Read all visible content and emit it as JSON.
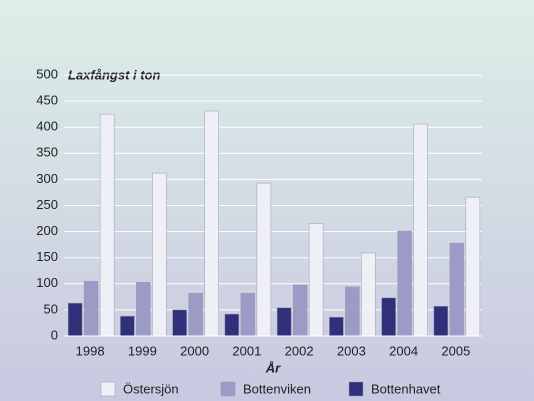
{
  "chart_data": {
    "type": "bar",
    "title": "Laxfångst i ton",
    "x_label": "År",
    "categories": [
      "1998",
      "1999",
      "2000",
      "2001",
      "2002",
      "2003",
      "2004",
      "2005"
    ],
    "series": [
      {
        "name": "Östersjön",
        "color": "#efeff7",
        "values": [
          425,
          312,
          431,
          293,
          215,
          159,
          406,
          266
        ]
      },
      {
        "name": "Bottenviken",
        "color": "#9b9bc6",
        "values": [
          105,
          103,
          82,
          82,
          98,
          94,
          201,
          178
        ]
      },
      {
        "name": "Bottenhavet",
        "color": "#2f2f7a",
        "values": [
          63,
          38,
          50,
          42,
          54,
          36,
          73,
          57
        ]
      }
    ],
    "ylim": [
      0,
      500
    ],
    "yticks": [
      0,
      50,
      100,
      150,
      200,
      250,
      300,
      350,
      400,
      450,
      500
    ],
    "grid": true
  }
}
